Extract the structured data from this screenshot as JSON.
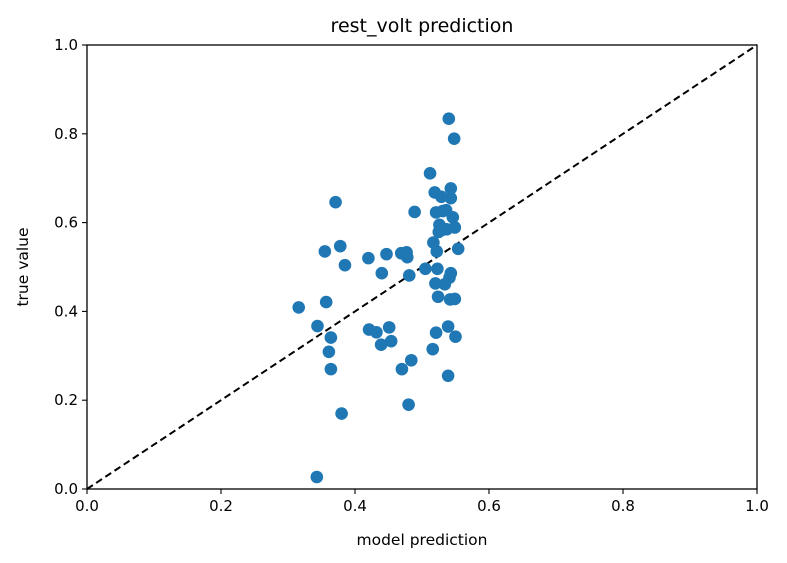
{
  "chart_data": {
    "type": "scatter",
    "title": "rest_volt prediction",
    "xlabel": "model prediction",
    "ylabel": "true value",
    "xlim": [
      0.0,
      1.0
    ],
    "ylim": [
      0.0,
      1.0
    ],
    "xticks": [
      "0.0",
      "0.2",
      "0.4",
      "0.6",
      "0.8",
      "1.0"
    ],
    "yticks": [
      "0.0",
      "0.2",
      "0.4",
      "0.6",
      "0.8",
      "1.0"
    ],
    "grid": false,
    "legend": "none",
    "reference_line": {
      "style": "dashed",
      "color": "#000000",
      "from": [
        0.0,
        0.0
      ],
      "to": [
        1.0,
        1.0
      ]
    },
    "series": [
      {
        "color": "#1f77b4",
        "points": [
          [
            0.54,
            0.834
          ],
          [
            0.548,
            0.789
          ],
          [
            0.512,
            0.711
          ],
          [
            0.543,
            0.677
          ],
          [
            0.519,
            0.668
          ],
          [
            0.543,
            0.655
          ],
          [
            0.529,
            0.658
          ],
          [
            0.371,
            0.646
          ],
          [
            0.489,
            0.624
          ],
          [
            0.521,
            0.623
          ],
          [
            0.531,
            0.626
          ],
          [
            0.536,
            0.628
          ],
          [
            0.546,
            0.612
          ],
          [
            0.526,
            0.595
          ],
          [
            0.549,
            0.589
          ],
          [
            0.531,
            0.584
          ],
          [
            0.525,
            0.579
          ],
          [
            0.537,
            0.585
          ],
          [
            0.517,
            0.555
          ],
          [
            0.378,
            0.547
          ],
          [
            0.554,
            0.541
          ],
          [
            0.355,
            0.535
          ],
          [
            0.522,
            0.535
          ],
          [
            0.469,
            0.531
          ],
          [
            0.477,
            0.533
          ],
          [
            0.447,
            0.529
          ],
          [
            0.478,
            0.522
          ],
          [
            0.42,
            0.52
          ],
          [
            0.385,
            0.504
          ],
          [
            0.505,
            0.496
          ],
          [
            0.523,
            0.496
          ],
          [
            0.44,
            0.486
          ],
          [
            0.481,
            0.481
          ],
          [
            0.543,
            0.486
          ],
          [
            0.541,
            0.476
          ],
          [
            0.52,
            0.463
          ],
          [
            0.534,
            0.461
          ],
          [
            0.524,
            0.433
          ],
          [
            0.542,
            0.427
          ],
          [
            0.549,
            0.428
          ],
          [
            0.357,
            0.421
          ],
          [
            0.316,
            0.409
          ],
          [
            0.344,
            0.367
          ],
          [
            0.451,
            0.364
          ],
          [
            0.421,
            0.359
          ],
          [
            0.539,
            0.366
          ],
          [
            0.432,
            0.353
          ],
          [
            0.521,
            0.352
          ],
          [
            0.364,
            0.341
          ],
          [
            0.55,
            0.343
          ],
          [
            0.454,
            0.333
          ],
          [
            0.439,
            0.325
          ],
          [
            0.516,
            0.315
          ],
          [
            0.361,
            0.309
          ],
          [
            0.484,
            0.29
          ],
          [
            0.364,
            0.27
          ],
          [
            0.47,
            0.27
          ],
          [
            0.539,
            0.255
          ],
          [
            0.48,
            0.19
          ],
          [
            0.38,
            0.17
          ],
          [
            0.343,
            0.027
          ]
        ]
      }
    ]
  }
}
